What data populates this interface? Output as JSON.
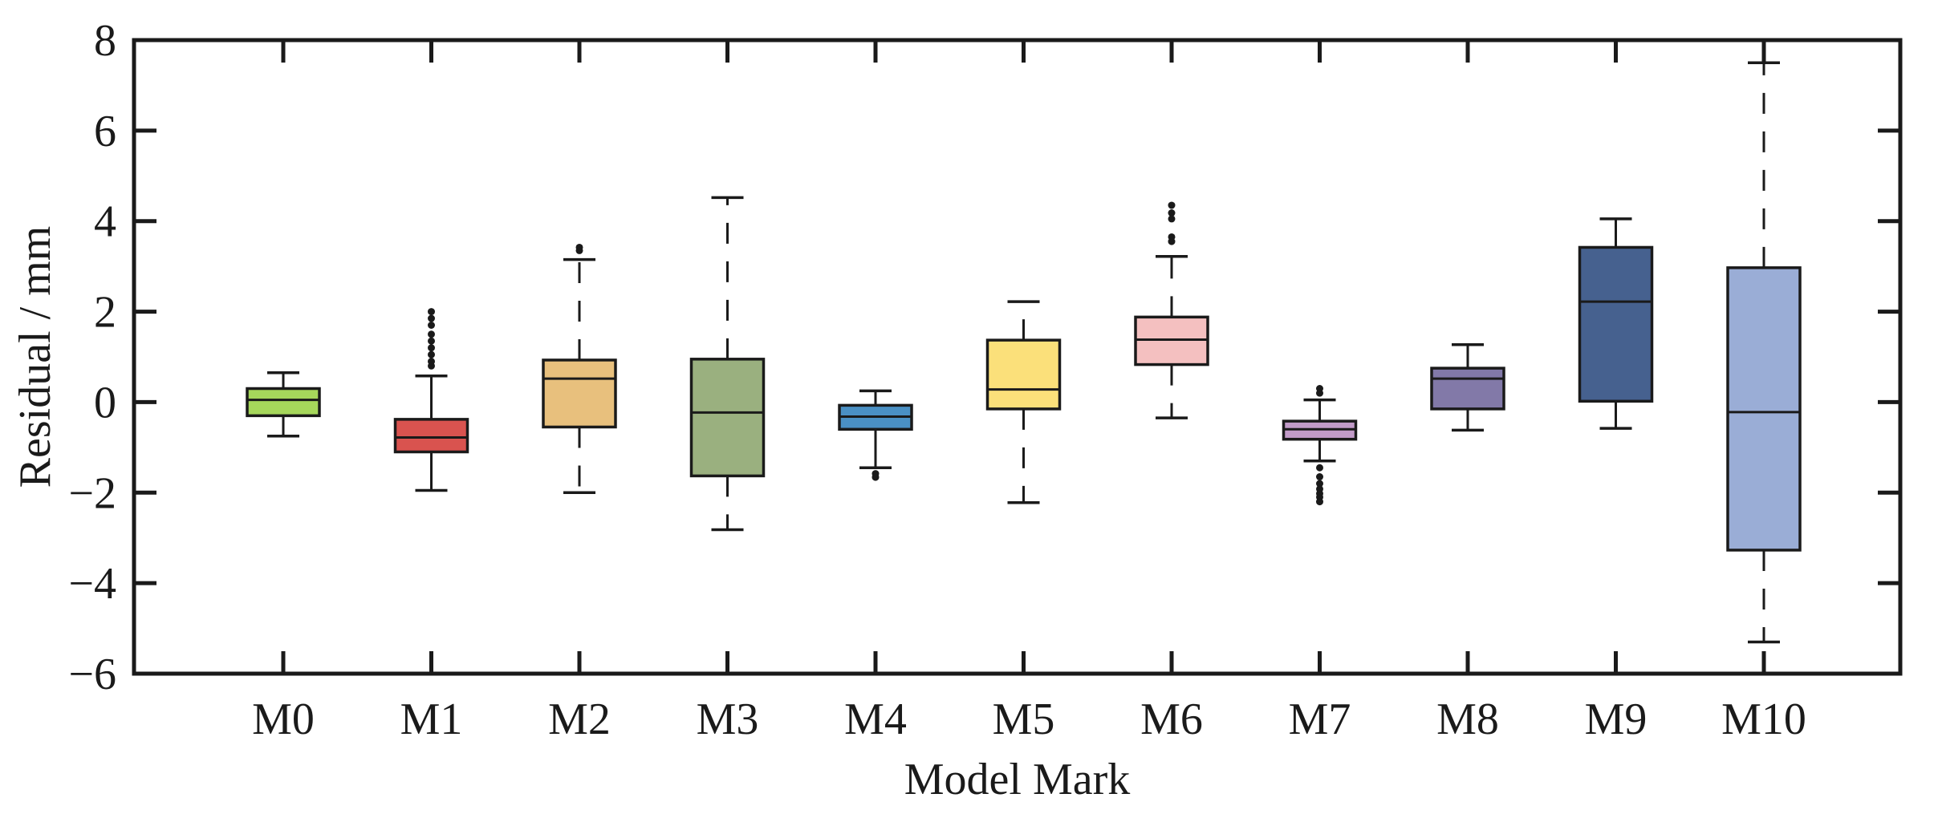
{
  "chart_data": {
    "type": "boxplot",
    "title": "",
    "xlabel": "Model Mark",
    "ylabel": "Residual / mm",
    "ylim": [
      -6,
      8
    ],
    "yticks": [
      -6,
      -4,
      -2,
      0,
      2,
      4,
      6,
      8
    ],
    "ytick_labels": [
      "−6",
      "−4",
      "−2",
      "0",
      "2",
      "4",
      "6",
      "8"
    ],
    "grid": false,
    "categories": [
      "M0",
      "M1",
      "M2",
      "M3",
      "M4",
      "M5",
      "M6",
      "M7",
      "M8",
      "M9",
      "M10"
    ],
    "boxes": [
      {
        "label": "M0",
        "color": "#a6d75b",
        "whisker_low": -0.75,
        "q1": -0.3,
        "median": 0.05,
        "q3": 0.3,
        "whisker_high": 0.65,
        "whisker_style": "solid",
        "caps": true,
        "outliers": []
      },
      {
        "label": "M1",
        "color": "#d9534f",
        "whisker_low": -1.95,
        "q1": -1.1,
        "median": -0.78,
        "q3": -0.38,
        "whisker_high": 0.58,
        "whisker_style": "solid",
        "caps": true,
        "outliers": [
          0.8,
          0.9,
          1.05,
          1.2,
          1.35,
          1.5,
          1.7,
          1.85,
          2.0
        ]
      },
      {
        "label": "M2",
        "color": "#e8c07d",
        "whisker_low": -2.0,
        "q1": -0.55,
        "median": 0.52,
        "q3": 0.93,
        "whisker_high": 3.15,
        "whisker_style": "dashed",
        "caps": true,
        "outliers": [
          3.35,
          3.42
        ]
      },
      {
        "label": "M3",
        "color": "#9ab07f",
        "whisker_low": -2.82,
        "q1": -1.63,
        "median": -0.23,
        "q3": 0.95,
        "whisker_high": 4.52,
        "whisker_style": "dashed",
        "caps": true,
        "outliers": []
      },
      {
        "label": "M4",
        "color": "#4a90c4",
        "whisker_low": -1.45,
        "q1": -0.6,
        "median": -0.32,
        "q3": -0.07,
        "whisker_high": 0.25,
        "whisker_style": "solid",
        "caps": true,
        "outliers": [
          -1.58,
          -1.66
        ]
      },
      {
        "label": "M5",
        "color": "#fbe07a",
        "whisker_low": -2.22,
        "q1": -0.15,
        "median": 0.28,
        "q3": 1.37,
        "whisker_high": 2.22,
        "whisker_style": "dashed",
        "caps": true,
        "outliers": []
      },
      {
        "label": "M6",
        "color": "#f4c0c0",
        "whisker_low": -0.35,
        "q1": 0.83,
        "median": 1.38,
        "q3": 1.88,
        "whisker_high": 3.22,
        "whisker_style": "dashed",
        "caps": true,
        "outliers": [
          3.55,
          3.65,
          4.05,
          4.18,
          4.35
        ]
      },
      {
        "label": "M7",
        "color": "#c29bc8",
        "whisker_low": -1.3,
        "q1": -0.82,
        "median": -0.6,
        "q3": -0.42,
        "whisker_high": 0.05,
        "whisker_style": "solid",
        "caps": true,
        "outliers": [
          0.2,
          0.3,
          -1.45,
          -1.65,
          -1.8,
          -1.92,
          -2.02,
          -2.1,
          -2.2
        ]
      },
      {
        "label": "M8",
        "color": "#8279a8",
        "whisker_low": -0.62,
        "q1": -0.15,
        "median": 0.52,
        "q3": 0.75,
        "whisker_high": 1.27,
        "whisker_style": "solid",
        "caps": true,
        "outliers": []
      },
      {
        "label": "M9",
        "color": "#46618f",
        "whisker_low": -0.58,
        "q1": 0.02,
        "median": 2.22,
        "q3": 3.42,
        "whisker_high": 4.05,
        "whisker_style": "solid",
        "caps": true,
        "outliers": []
      },
      {
        "label": "M10",
        "color": "#9aadd6",
        "whisker_low": -5.3,
        "q1": -3.27,
        "median": -0.22,
        "q3": 2.97,
        "whisker_high": 7.5,
        "whisker_style": "dashed",
        "caps": true,
        "outliers": []
      }
    ]
  }
}
